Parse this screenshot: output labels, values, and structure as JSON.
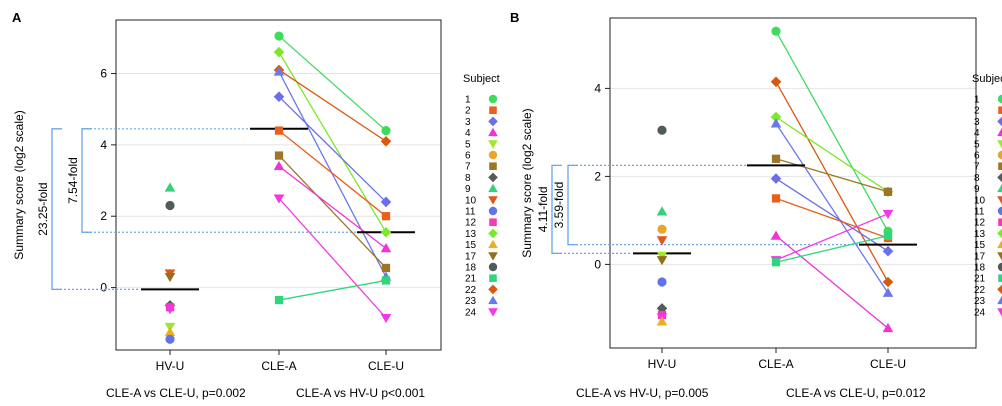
{
  "subject_colors": {
    "1": "#3ddc5c",
    "2": "#e8601c",
    "3": "#6b6ee8",
    "4": "#f032d8",
    "5": "#9de82a",
    "6": "#e8a628",
    "7": "#9c7626",
    "8": "#555b58",
    "9": "#34d17a",
    "10": "#e0561c",
    "11": "#6272e8",
    "12": "#f23ab8",
    "13": "#7be82a",
    "15": "#e8b020",
    "17": "#94701e",
    "18": "#4e5d5a",
    "21": "#30d67c",
    "22": "#d85a10",
    "23": "#6b78ea",
    "24": "#f536e8"
  },
  "subject_markers": {
    "1": "circle",
    "2": "square",
    "3": "diamond",
    "4": "triangle-up",
    "5": "triangle-down",
    "6": "circle",
    "7": "square",
    "8": "diamond",
    "9": "triangle-up",
    "10": "triangle-down",
    "11": "circle",
    "12": "square",
    "13": "diamond",
    "15": "triangle-up",
    "17": "triangle-down",
    "18": "circle",
    "21": "square",
    "22": "diamond",
    "23": "triangle-up",
    "24": "triangle-down"
  },
  "chart_data": [
    {
      "panel_label": "A",
      "type": "scatter",
      "ylabel": "Summary score (log2 scale)",
      "ylim": [
        -1.75,
        7.5
      ],
      "yticks": [
        0,
        2,
        4,
        6
      ],
      "grid": true,
      "categories": [
        "HV-U",
        "CLE-A",
        "CLE-U"
      ],
      "legend_title": "Subject",
      "legend_entries": [
        "1",
        "2",
        "3",
        "4",
        "5",
        "6",
        "7",
        "8",
        "9",
        "10",
        "11",
        "12",
        "13",
        "15",
        "17",
        "18",
        "21",
        "22",
        "23",
        "24"
      ],
      "medians": [
        -0.05,
        4.45,
        1.55
      ],
      "hv_points": [
        {
          "subject": "9",
          "y": 2.8
        },
        {
          "subject": "18",
          "y": 2.3
        },
        {
          "subject": "10",
          "y": 0.4
        },
        {
          "subject": "17",
          "y": 0.3
        },
        {
          "subject": "8",
          "y": -0.5
        },
        {
          "subject": "12",
          "y": -0.55
        },
        {
          "subject": "24",
          "y": -0.6
        },
        {
          "subject": "5",
          "y": -1.1
        },
        {
          "subject": "15",
          "y": -1.25
        },
        {
          "subject": "11",
          "y": -1.45
        }
      ],
      "paired": [
        {
          "subject": "1",
          "a": 7.05,
          "u": 4.4
        },
        {
          "subject": "13",
          "a": 6.6,
          "u": 1.55
        },
        {
          "subject": "22",
          "a": 6.1,
          "u": 4.1
        },
        {
          "subject": "23",
          "a": 6.05,
          "u": 0.3
        },
        {
          "subject": "3",
          "a": 5.35,
          "u": 2.4
        },
        {
          "subject": "2",
          "a": 4.4,
          "u": 2.0
        },
        {
          "subject": "7",
          "a": 3.7,
          "u": 0.55
        },
        {
          "subject": "4",
          "a": 3.4,
          "u": 1.1
        },
        {
          "subject": "24",
          "a": 2.5,
          "u": -0.85
        },
        {
          "subject": "21",
          "a": -0.35,
          "u": 0.2
        }
      ],
      "brackets": [
        {
          "label": "23.25-fold",
          "from": -0.05,
          "to": 4.45
        },
        {
          "label": "7.54-fold",
          "from": 1.55,
          "to": 4.45
        }
      ],
      "stats": [
        "CLE-A vs CLE-U, p=0.002",
        "CLE-A vs HV-U p<0.001"
      ]
    },
    {
      "panel_label": "B",
      "type": "scatter",
      "ylabel": "Summary score (log2 scale)",
      "ylim": [
        -1.9,
        5.6
      ],
      "yticks": [
        0,
        2,
        4
      ],
      "grid": true,
      "categories": [
        "HV-U",
        "CLE-A",
        "CLE-U"
      ],
      "legend_title": "Subject",
      "legend_entries": [
        "1",
        "2",
        "3",
        "4",
        "5",
        "6",
        "7",
        "8",
        "9",
        "10",
        "11",
        "12",
        "13",
        "15",
        "17",
        "18",
        "21",
        "22",
        "23",
        "24"
      ],
      "medians": [
        0.25,
        2.25,
        0.45
      ],
      "hv_points": [
        {
          "subject": "18",
          "y": 3.05
        },
        {
          "subject": "9",
          "y": 1.2
        },
        {
          "subject": "6",
          "y": 0.8
        },
        {
          "subject": "10",
          "y": 0.55
        },
        {
          "subject": "5",
          "y": 0.2
        },
        {
          "subject": "17",
          "y": 0.1
        },
        {
          "subject": "11",
          "y": -0.4
        },
        {
          "subject": "8",
          "y": -1.0
        },
        {
          "subject": "12",
          "y": -1.15
        },
        {
          "subject": "24",
          "y": -1.2
        },
        {
          "subject": "15",
          "y": -1.3
        }
      ],
      "paired": [
        {
          "subject": "1",
          "a": 5.3,
          "u": 0.75
        },
        {
          "subject": "22",
          "a": 4.15,
          "u": -0.4
        },
        {
          "subject": "13",
          "a": 3.35,
          "u": 1.65
        },
        {
          "subject": "23",
          "a": 3.2,
          "u": -0.65
        },
        {
          "subject": "7",
          "a": 2.4,
          "u": 1.65
        },
        {
          "subject": "3",
          "a": 1.95,
          "u": 0.3
        },
        {
          "subject": "2",
          "a": 1.5,
          "u": 0.6
        },
        {
          "subject": "4",
          "a": 0.65,
          "u": -1.45
        },
        {
          "subject": "24",
          "a": 0.1,
          "u": 1.15
        },
        {
          "subject": "21",
          "a": 0.05,
          "u": 0.65
        }
      ],
      "brackets": [
        {
          "label": "4.11-fold",
          "from": 0.25,
          "to": 2.25
        },
        {
          "label": "3.59-fold",
          "from": 0.45,
          "to": 2.25
        }
      ],
      "stats": [
        "CLE-A vs HV-U, p=0.005",
        "CLE-A vs CLE-U, p=0.012"
      ]
    }
  ]
}
